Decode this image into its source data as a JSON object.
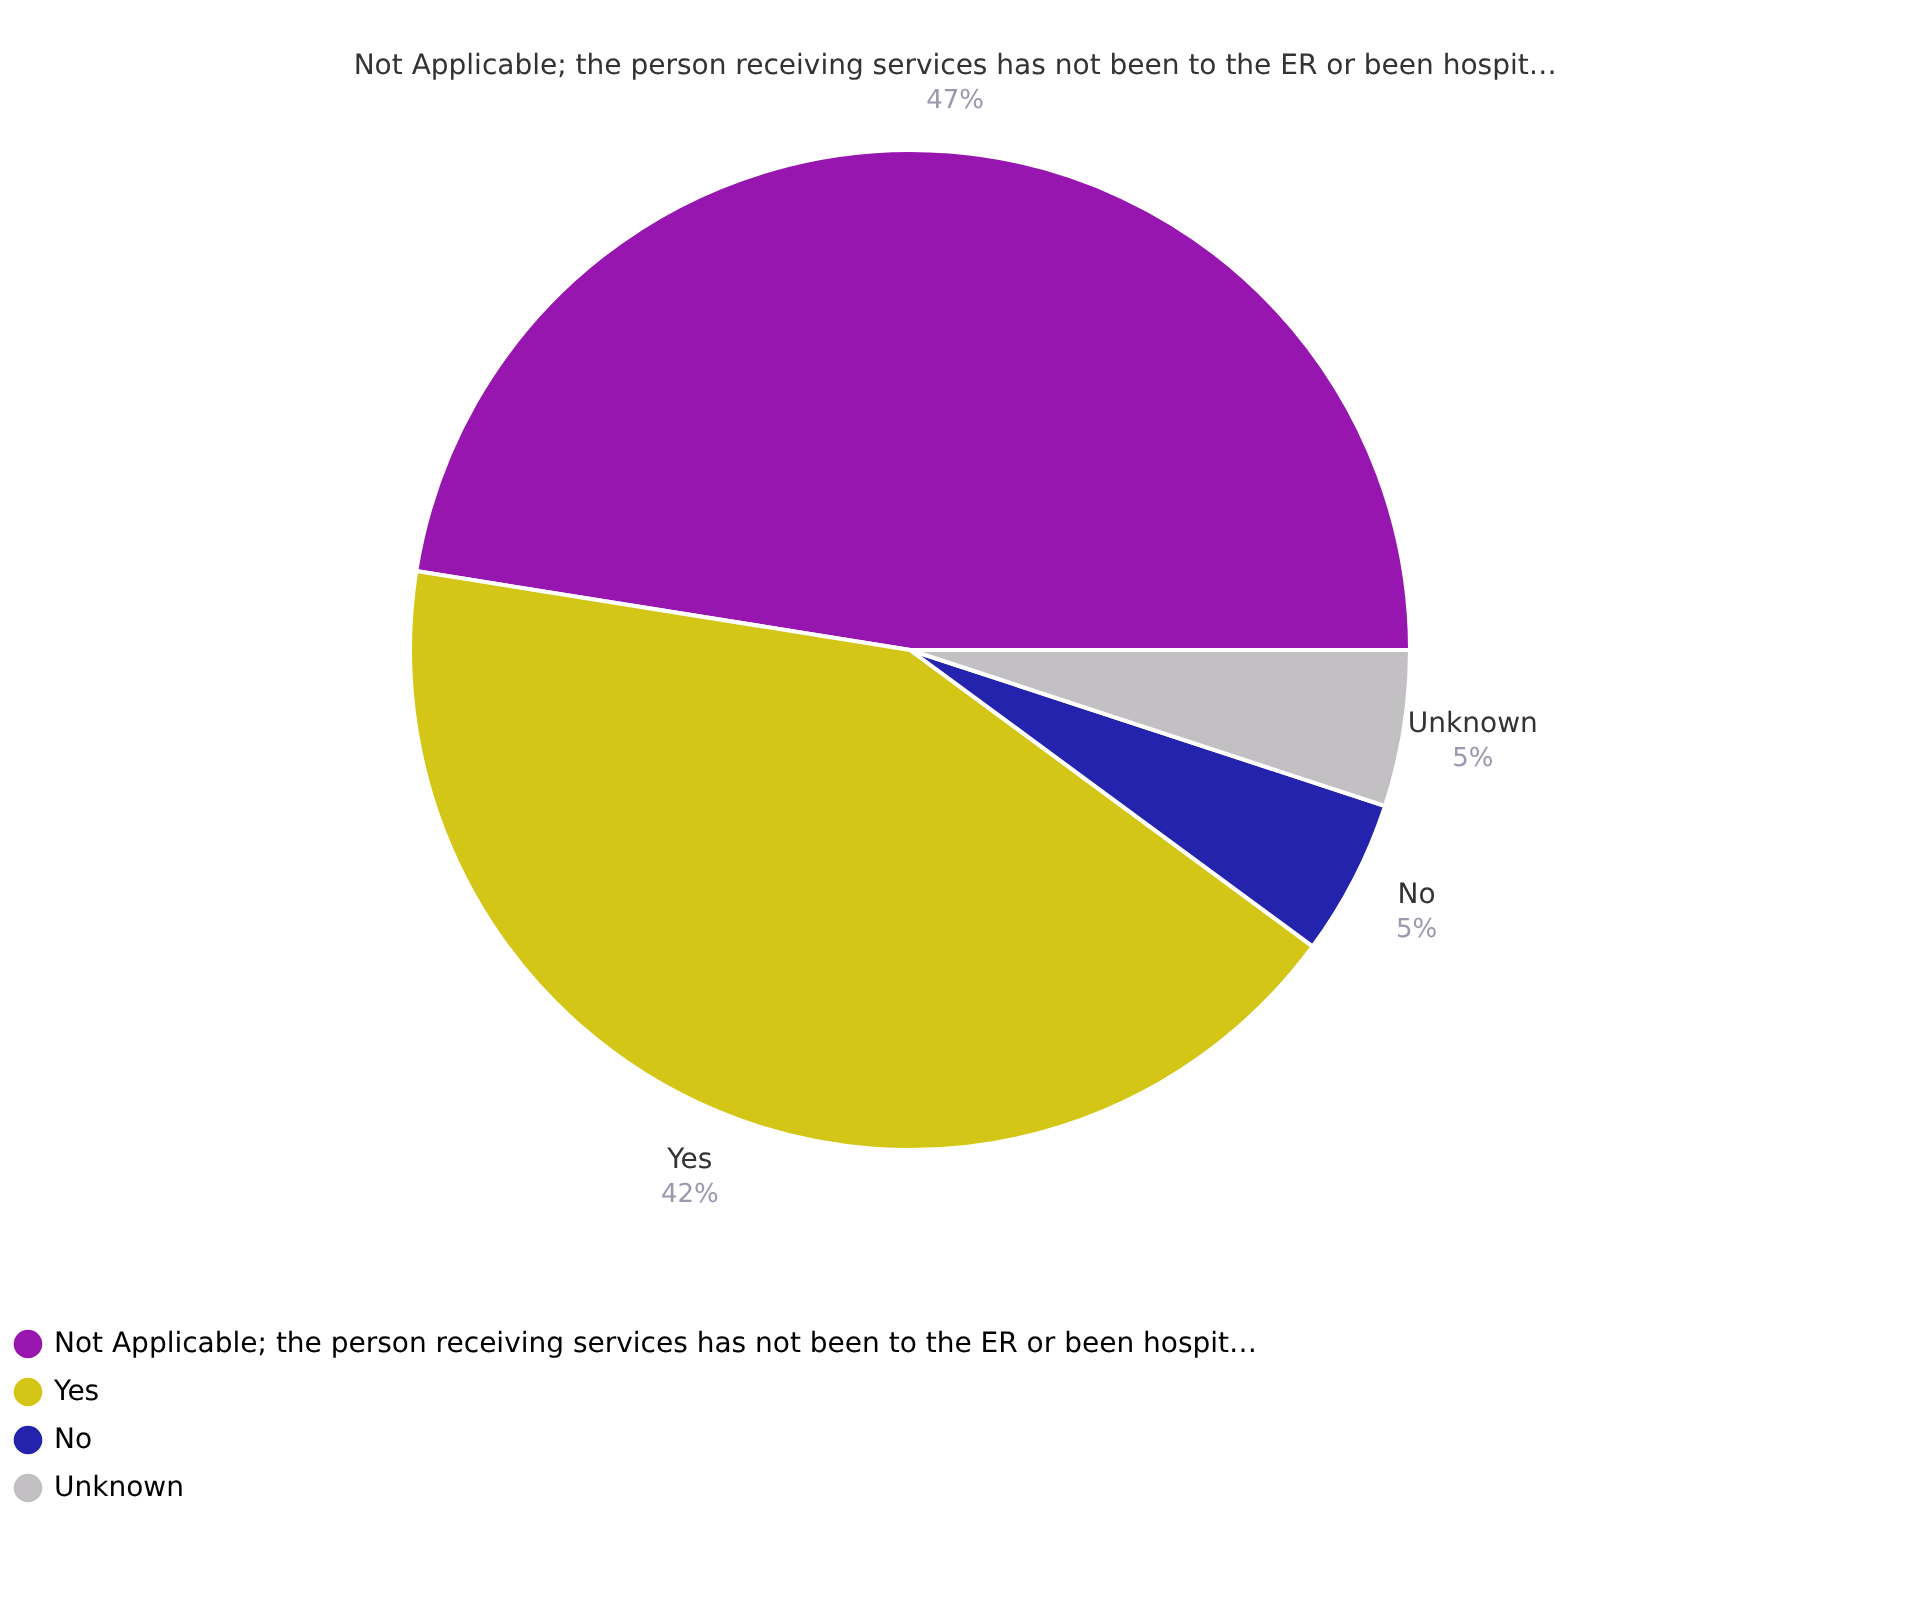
{
  "chart_data": {
    "type": "pie",
    "categories": [
      "Not Applicable; the person receiving services has not been to the ER or been hospit…",
      "Yes",
      "No",
      "Unknown"
    ],
    "values": [
      47,
      42,
      5,
      5
    ],
    "value_labels": [
      "47%",
      "42%",
      "5%",
      "5%"
    ],
    "colors": [
      "#9716b0",
      "#d4c616",
      "#2323ad",
      "#c2c0c2"
    ],
    "legend": "bottom"
  }
}
